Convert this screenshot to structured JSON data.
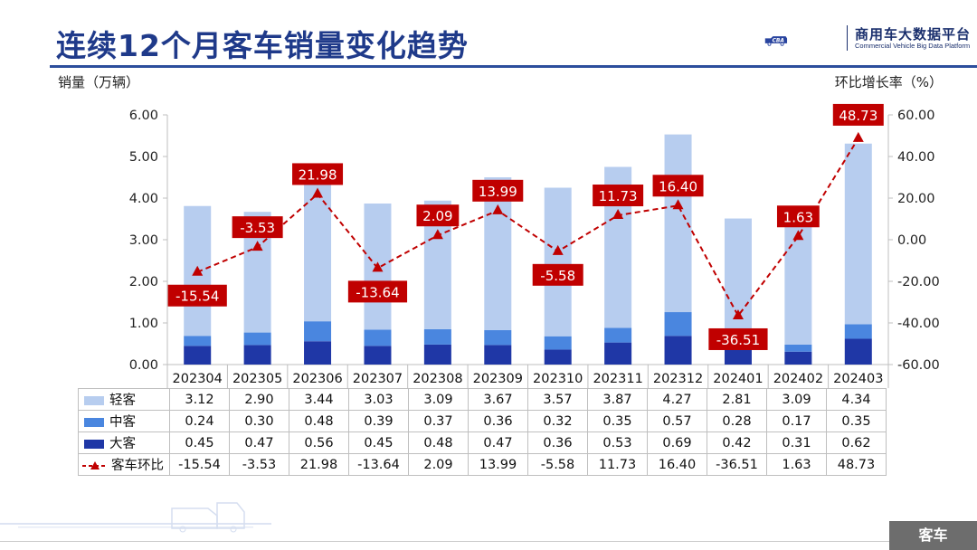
{
  "header": {
    "title": "连续12个月客车销量变化趋势",
    "logo_cn": "商用车大数据平台",
    "logo_en": "Commercial Vehicle Big Data Platform"
  },
  "axes": {
    "left_unit": "销量（万辆）",
    "right_unit": "环比增长率（%）"
  },
  "footer": {
    "tag": "客车"
  },
  "colors": {
    "light": "#b7cdef",
    "medium": "#4a86df",
    "heavy": "#1f37a6",
    "line": "#c00000",
    "title": "#1f3a8a"
  },
  "chart_data": {
    "type": "bar",
    "categories": [
      "202304",
      "202305",
      "202306",
      "202307",
      "202308",
      "202309",
      "202310",
      "202311",
      "202312",
      "202401",
      "202402",
      "202403"
    ],
    "series": [
      {
        "name": "轻客",
        "values": [
          3.12,
          2.9,
          3.44,
          3.03,
          3.09,
          3.67,
          3.57,
          3.87,
          4.27,
          2.81,
          3.09,
          4.34
        ],
        "display": [
          "3.12",
          "2.90",
          "3.44",
          "3.03",
          "3.09",
          "3.67",
          "3.57",
          "3.87",
          "4.27",
          "2.81",
          "3.09",
          "4.34"
        ]
      },
      {
        "name": "中客",
        "values": [
          0.24,
          0.3,
          0.48,
          0.39,
          0.37,
          0.36,
          0.32,
          0.35,
          0.57,
          0.28,
          0.17,
          0.35
        ],
        "display": [
          "0.24",
          "0.30",
          "0.48",
          "0.39",
          "0.37",
          "0.36",
          "0.32",
          "0.35",
          "0.57",
          "0.28",
          "0.17",
          "0.35"
        ]
      },
      {
        "name": "大客",
        "values": [
          0.45,
          0.47,
          0.56,
          0.45,
          0.48,
          0.47,
          0.36,
          0.53,
          0.69,
          0.42,
          0.31,
          0.62
        ],
        "display": [
          "0.45",
          "0.47",
          "0.56",
          "0.45",
          "0.48",
          "0.47",
          "0.36",
          "0.53",
          "0.69",
          "0.42",
          "0.31",
          "0.62"
        ]
      },
      {
        "name": "客车环比",
        "values": [
          -15.54,
          -3.53,
          21.98,
          -13.64,
          2.09,
          13.99,
          -5.58,
          11.73,
          16.4,
          -36.51,
          1.63,
          48.73
        ],
        "display": [
          "-15.54",
          "-3.53",
          "21.98",
          "-13.64",
          "2.09",
          "13.99",
          "-5.58",
          "11.73",
          "16.40",
          "-36.51",
          "1.63",
          "48.73"
        ]
      }
    ],
    "left_axis": {
      "min": 0,
      "max": 6,
      "ticks": [
        "0.00",
        "1.00",
        "2.00",
        "3.00",
        "4.00",
        "5.00",
        "6.00"
      ]
    },
    "right_axis": {
      "min": -60,
      "max": 60,
      "ticks": [
        "-60.00",
        "-40.00",
        "-20.00",
        "0.00",
        "20.00",
        "40.00",
        "60.00"
      ]
    },
    "legend_placement": "bottom data table",
    "grid": false
  }
}
